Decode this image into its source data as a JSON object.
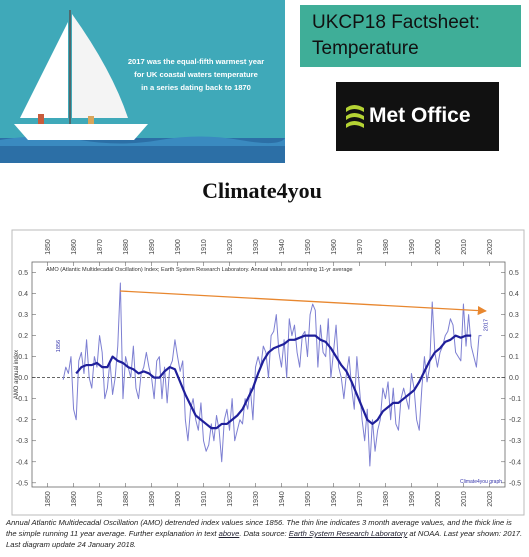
{
  "infographic": {
    "lines": [
      "2017 was the equal-fifth warmest year",
      "for UK coastal waters temperature",
      "in a series dating back to 1870"
    ]
  },
  "factsheet": {
    "title_lines": [
      "UKCP18 Factsheet:",
      "Temperature"
    ]
  },
  "logo": "Met Office",
  "site_title": "Climate4you",
  "caption": {
    "parts": [
      "Annual Atlantic Multidecadal Oscillation (AMO) detrended index values since 1856. The thin line indicates 3 month average values, and the thick line is the simple running 11 year average. Further explanation in text ",
      "above",
      ". Data source: ",
      "Earth System Research Laboratory",
      " at NOAA. Last year shown: 2017. Last diagram update 24 January 2018."
    ]
  },
  "chart_data": {
    "type": "line",
    "title": "AMO (Atlantic Multidecadal Oscillation) Index; Earth System Research Laboratory. Annual values and running 11-yr average",
    "y_label": "AMO annual index",
    "annotations": [
      "1856",
      "2017",
      "Climate4you graph"
    ],
    "xlim": [
      1844,
      2026
    ],
    "xticks": [
      1850,
      1860,
      1870,
      1880,
      1890,
      1900,
      1910,
      1920,
      1930,
      1940,
      1950,
      1960,
      1970,
      1980,
      1990,
      2000,
      2010,
      2020
    ],
    "ylim": [
      -0.52,
      0.55
    ],
    "yticks": [
      0.5,
      0.4,
      0.3,
      0.2,
      0.1,
      {
        "value": 0,
        "label": "0.0"
      },
      -0.1,
      -0.2,
      -0.3,
      -0.4,
      -0.5
    ],
    "series": [
      {
        "color": "#7d7fd2",
        "width": 1,
        "x": [
          1856,
          1857,
          1858,
          1859,
          1860,
          1861,
          1862,
          1863,
          1864,
          1865,
          1866,
          1867,
          1868,
          1869,
          1870,
          1871,
          1872,
          1873,
          1874,
          1875,
          1876,
          1877,
          1878,
          1879,
          1880,
          1881,
          1882,
          1883,
          1884,
          1885,
          1886,
          1887,
          1888,
          1889,
          1890,
          1891,
          1892,
          1893,
          1894,
          1895,
          1896,
          1897,
          1898,
          1899,
          1900,
          1901,
          1902,
          1903,
          1904,
          1905,
          1906,
          1907,
          1908,
          1909,
          1910,
          1911,
          1912,
          1913,
          1914,
          1915,
          1916,
          1917,
          1918,
          1919,
          1920,
          1921,
          1922,
          1923,
          1924,
          1925,
          1926,
          1927,
          1928,
          1929,
          1930,
          1931,
          1932,
          1933,
          1934,
          1935,
          1936,
          1937,
          1938,
          1939,
          1940,
          1941,
          1942,
          1943,
          1944,
          1945,
          1946,
          1947,
          1948,
          1949,
          1950,
          1951,
          1952,
          1953,
          1954,
          1955,
          1956,
          1957,
          1958,
          1959,
          1960,
          1961,
          1962,
          1963,
          1964,
          1965,
          1966,
          1967,
          1968,
          1969,
          1970,
          1971,
          1972,
          1973,
          1974,
          1975,
          1976,
          1977,
          1978,
          1979,
          1980,
          1981,
          1982,
          1983,
          1984,
          1985,
          1986,
          1987,
          1988,
          1989,
          1990,
          1991,
          1992,
          1993,
          1994,
          1995,
          1996,
          1997,
          1998,
          1999,
          2000,
          2001,
          2002,
          2003,
          2004,
          2005,
          2006,
          2007,
          2008,
          2009,
          2010,
          2011,
          2012,
          2013,
          2014,
          2015,
          2016,
          2017
        ],
        "values": [
          -0.01,
          0.05,
          0.02,
          0.1,
          -0.15,
          -0.2,
          0.08,
          0.12,
          0.02,
          0.18,
          0.0,
          -0.05,
          0.1,
          0.05,
          0.2,
          0.12,
          -0.1,
          -0.05,
          0.08,
          -0.08,
          0.0,
          0.15,
          0.45,
          -0.1,
          0.1,
          0.05,
          0.0,
          0.15,
          -0.05,
          -0.1,
          0.02,
          0.05,
          0.12,
          0.05,
          0.0,
          -0.1,
          0.08,
          0.1,
          -0.1,
          0.05,
          -0.12,
          0.05,
          0.08,
          0.18,
          0.1,
          0.03,
          0.08,
          -0.2,
          -0.3,
          -0.15,
          -0.1,
          -0.2,
          -0.25,
          -0.12,
          -0.3,
          -0.35,
          -0.32,
          -0.22,
          -0.3,
          -0.18,
          -0.25,
          -0.4,
          -0.2,
          -0.15,
          -0.25,
          -0.1,
          -0.3,
          -0.25,
          -0.2,
          -0.22,
          -0.1,
          -0.15,
          -0.05,
          -0.2,
          0.05,
          0.1,
          0.05,
          0.15,
          0.12,
          0.0,
          0.2,
          0.22,
          0.3,
          0.12,
          0.05,
          0.18,
          0.0,
          0.28,
          0.2,
          0.25,
          0.12,
          0.05,
          0.2,
          0.22,
          0.1,
          0.3,
          0.35,
          0.32,
          0.05,
          0.25,
          0.12,
          0.1,
          0.28,
          0.0,
          0.12,
          0.25,
          0.05,
          0.0,
          -0.1,
          0.02,
          0.1,
          -0.05,
          -0.15,
          0.1,
          -0.05,
          -0.2,
          -0.3,
          -0.15,
          -0.42,
          -0.2,
          -0.35,
          -0.25,
          -0.2,
          -0.05,
          -0.1,
          -0.02,
          -0.2,
          -0.05,
          -0.22,
          -0.25,
          -0.1,
          -0.05,
          -0.1,
          -0.15,
          0.02,
          -0.05,
          -0.2,
          -0.25,
          -0.05,
          0.1,
          -0.02,
          0.05,
          0.36,
          0.12,
          0.05,
          0.12,
          0.15,
          0.2,
          0.22,
          0.28,
          0.25,
          0.12,
          0.1,
          0.08,
          0.35,
          0.15,
          0.3,
          0.15,
          0.1,
          0.05,
          0.2,
          0.2
        ]
      },
      {
        "color": "#1f1f9a",
        "width": 2.2,
        "x": [
          1861,
          1863,
          1865,
          1867,
          1869,
          1871,
          1873,
          1875,
          1877,
          1879,
          1881,
          1883,
          1885,
          1887,
          1889,
          1891,
          1893,
          1895,
          1897,
          1899,
          1901,
          1903,
          1905,
          1907,
          1909,
          1911,
          1913,
          1915,
          1917,
          1919,
          1921,
          1923,
          1925,
          1927,
          1929,
          1931,
          1933,
          1935,
          1937,
          1939,
          1941,
          1943,
          1945,
          1947,
          1949,
          1951,
          1953,
          1955,
          1957,
          1959,
          1961,
          1963,
          1965,
          1967,
          1969,
          1971,
          1973,
          1975,
          1977,
          1979,
          1981,
          1983,
          1985,
          1987,
          1989,
          1991,
          1993,
          1995,
          1997,
          1999,
          2001,
          2003,
          2005,
          2007,
          2009,
          2011,
          2013
        ],
        "values": [
          0.02,
          0.05,
          0.06,
          0.06,
          0.07,
          0.05,
          0.05,
          0.1,
          0.08,
          0.07,
          0.05,
          0.04,
          0.02,
          0.03,
          0.02,
          0.0,
          0.0,
          0.03,
          0.05,
          0.04,
          -0.02,
          -0.08,
          -0.13,
          -0.18,
          -0.2,
          -0.22,
          -0.24,
          -0.24,
          -0.22,
          -0.22,
          -0.2,
          -0.18,
          -0.15,
          -0.1,
          -0.05,
          0.02,
          0.08,
          0.12,
          0.14,
          0.15,
          0.16,
          0.18,
          0.18,
          0.19,
          0.2,
          0.2,
          0.2,
          0.18,
          0.17,
          0.14,
          0.1,
          0.06,
          0.03,
          -0.02,
          -0.08,
          -0.14,
          -0.2,
          -0.22,
          -0.2,
          -0.16,
          -0.14,
          -0.12,
          -0.12,
          -0.1,
          -0.08,
          -0.06,
          -0.02,
          0.03,
          0.08,
          0.12,
          0.14,
          0.17,
          0.18,
          0.2,
          0.19,
          0.2,
          0.2
        ]
      }
    ]
  }
}
